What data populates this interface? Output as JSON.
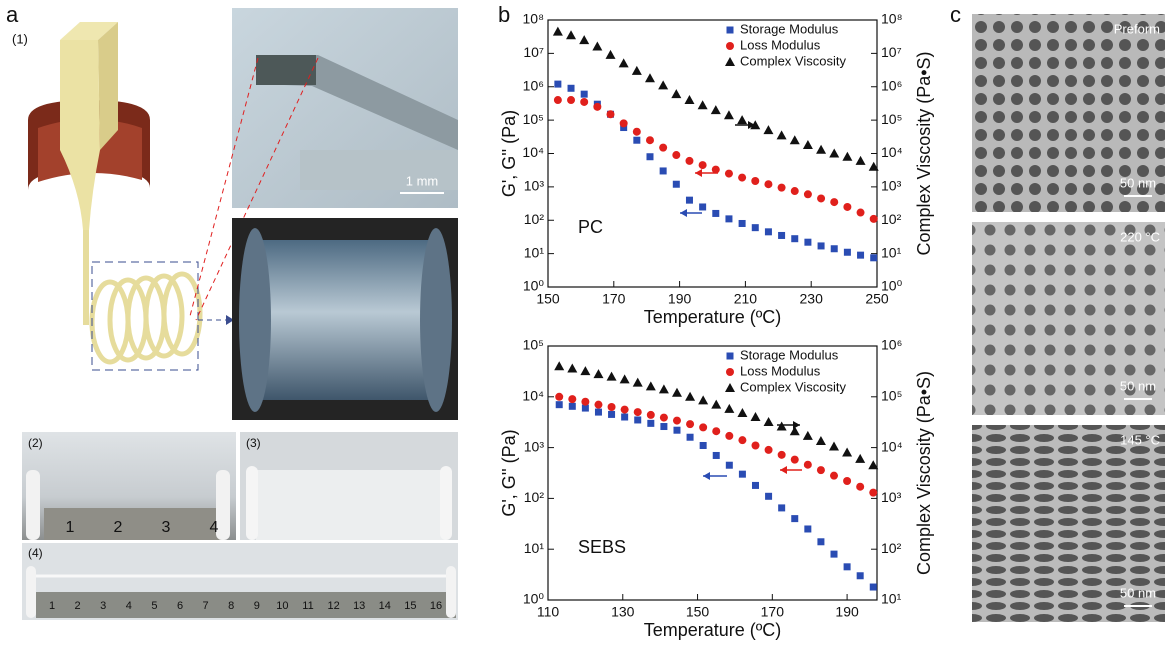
{
  "panels": {
    "a": "a",
    "b": "b",
    "c": "c"
  },
  "panel_a": {
    "sub1": "(1)",
    "sub2": "(2)",
    "sub3": "(3)",
    "sub4": "(4)",
    "scale": "1 mm",
    "ruler_short": [
      "1",
      "2",
      "3",
      "4"
    ],
    "ruler_long": [
      "1",
      "2",
      "3",
      "4",
      "5",
      "6",
      "7",
      "8",
      "9",
      "10",
      "11",
      "12",
      "13",
      "14",
      "15",
      "16"
    ]
  },
  "panel_c": {
    "labels": [
      "Preform",
      "220 °C",
      "145 °C"
    ],
    "scale": "50 nm"
  },
  "chart_data": [
    {
      "type": "scatter",
      "annotation": "PC",
      "xlabel": "Temperature (ºC)",
      "ylabel": "G', G'' (Pa)",
      "y2label": "Complex Viscosity (Pa•S)",
      "xlim": [
        150,
        250
      ],
      "xticks": [
        150,
        170,
        190,
        210,
        230,
        250
      ],
      "log_y": true,
      "ylim": [
        1,
        100000000
      ],
      "yticks": [
        {
          "value": 1,
          "label": "10⁰"
        },
        {
          "value": 10,
          "label": "10¹"
        },
        {
          "value": 100,
          "label": "10²"
        },
        {
          "value": 1000,
          "label": "10³"
        },
        {
          "value": 10000,
          "label": "10⁴"
        },
        {
          "value": 100000,
          "label": "10⁵"
        },
        {
          "value": 1000000,
          "label": "10⁶"
        },
        {
          "value": 10000000,
          "label": "10⁷"
        },
        {
          "value": 100000000,
          "label": "10⁸"
        }
      ],
      "y2lim": [
        1,
        100000000
      ],
      "y2ticks": [
        {
          "value": 1,
          "label": "10⁰"
        },
        {
          "value": 10,
          "label": "10¹"
        },
        {
          "value": 100,
          "label": "10²"
        },
        {
          "value": 1000,
          "label": "10³"
        },
        {
          "value": 10000,
          "label": "10⁴"
        },
        {
          "value": 100000,
          "label": "10⁵"
        },
        {
          "value": 1000000,
          "label": "10⁶"
        },
        {
          "value": 10000000,
          "label": "10⁷"
        },
        {
          "value": 100000000,
          "label": "10⁸"
        }
      ],
      "x": [
        153,
        157,
        161,
        165,
        169,
        173,
        177,
        181,
        185,
        189,
        193,
        197,
        201,
        205,
        209,
        213,
        217,
        221,
        225,
        229,
        233,
        237,
        241,
        245,
        249
      ],
      "series": [
        {
          "name": "Storage Modulus",
          "color": "#2a4cb3",
          "marker": "square",
          "values": [
            1200000,
            900000,
            600000,
            300000,
            150000,
            60000,
            25000,
            8000,
            3000,
            1200,
            400,
            250,
            160,
            110,
            80,
            60,
            45,
            35,
            28,
            22,
            17,
            14,
            11,
            9,
            7.5
          ]
        },
        {
          "name": "Loss Modulus",
          "color": "#e0201c",
          "marker": "circle",
          "values": [
            400000,
            400000,
            350000,
            250000,
            150000,
            80000,
            45000,
            25000,
            15000,
            9000,
            6000,
            4500,
            3300,
            2500,
            1900,
            1500,
            1200,
            950,
            750,
            600,
            450,
            350,
            250,
            170,
            110
          ]
        },
        {
          "name": "Complex Viscosity",
          "color": "#111111",
          "marker": "triangle",
          "axis": "y2",
          "values": [
            45000000,
            35000000,
            25000000,
            16000000,
            9000000,
            5000000,
            3000000,
            1800000,
            1100000,
            600000,
            400000,
            280000,
            200000,
            140000,
            100000,
            70000,
            50000,
            35000,
            25000,
            18000,
            13000,
            10000,
            8000,
            6000,
            4000
          ]
        }
      ]
    },
    {
      "type": "scatter",
      "annotation": "SEBS",
      "xlabel": "Temperature (ºC)",
      "ylabel": "G', G'' (Pa)",
      "y2label": "Complex Viscosity (Pa•S)",
      "xlim": [
        110,
        198
      ],
      "xticks": [
        110,
        130,
        150,
        170,
        190
      ],
      "log_y": true,
      "ylim": [
        1,
        100000
      ],
      "yticks": [
        {
          "value": 1,
          "label": "10⁰"
        },
        {
          "value": 10,
          "label": "10¹"
        },
        {
          "value": 100,
          "label": "10²"
        },
        {
          "value": 1000,
          "label": "10³"
        },
        {
          "value": 10000,
          "label": "10⁴"
        },
        {
          "value": 100000,
          "label": "10⁵"
        }
      ],
      "y2lim": [
        10,
        1000000
      ],
      "y2ticks": [
        {
          "value": 10,
          "label": "10¹"
        },
        {
          "value": 100,
          "label": "10²"
        },
        {
          "value": 1000,
          "label": "10³"
        },
        {
          "value": 10000,
          "label": "10⁴"
        },
        {
          "value": 100000,
          "label": "10⁵"
        },
        {
          "value": 1000000,
          "label": "10⁶"
        }
      ],
      "x": [
        113,
        116.5,
        120,
        123.5,
        127,
        130.5,
        134,
        137.5,
        141,
        144.5,
        148,
        151.5,
        155,
        158.5,
        162,
        165.5,
        169,
        172.5,
        176,
        179.5,
        183,
        186.5,
        190,
        193.5,
        197
      ],
      "series": [
        {
          "name": "Storage Modulus",
          "color": "#2a4cb3",
          "marker": "square",
          "values": [
            7000,
            6500,
            6000,
            5000,
            4500,
            4000,
            3500,
            3000,
            2600,
            2200,
            1600,
            1100,
            700,
            450,
            300,
            180,
            110,
            65,
            40,
            25,
            14,
            8,
            4.5,
            3,
            1.8
          ]
        },
        {
          "name": "Loss Modulus",
          "color": "#e0201c",
          "marker": "circle",
          "values": [
            10000,
            9000,
            8000,
            7000,
            6300,
            5600,
            5000,
            4400,
            3900,
            3400,
            2900,
            2500,
            2100,
            1700,
            1400,
            1100,
            900,
            720,
            580,
            460,
            360,
            280,
            220,
            170,
            130
          ]
        },
        {
          "name": "Complex Viscosity",
          "color": "#111111",
          "marker": "triangle",
          "axis": "y2",
          "values": [
            400000,
            360000,
            320000,
            280000,
            250000,
            220000,
            190000,
            160000,
            140000,
            120000,
            100000,
            85000,
            70000,
            58000,
            48000,
            40000,
            32000,
            26000,
            21000,
            17000,
            13500,
            10500,
            8000,
            6000,
            4500
          ]
        }
      ]
    }
  ]
}
